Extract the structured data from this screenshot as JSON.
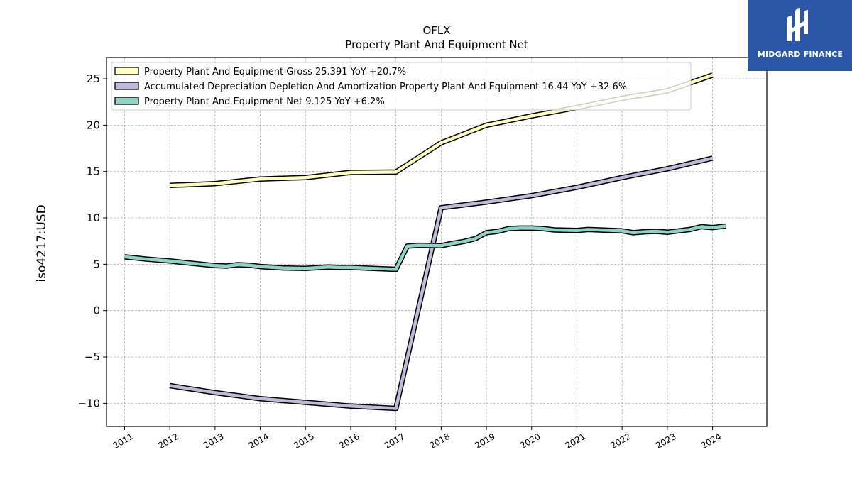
{
  "chart_data": {
    "type": "line",
    "title": "OFLX",
    "subtitle": "Property Plant And Equipment Net",
    "ylabel": "iso4217:USD",
    "xlabel": "",
    "ylim": [
      -12.5,
      27.3
    ],
    "xlim": [
      2010.6,
      2025.2
    ],
    "yticks": [
      -10,
      -5,
      0,
      5,
      10,
      15,
      20,
      25
    ],
    "ytick_labels": [
      "−10",
      "−5",
      "0",
      "5",
      "10",
      "15",
      "20",
      "25"
    ],
    "xticks": [
      "2011",
      "2012",
      "2013",
      "2014",
      "2015",
      "2016",
      "2017",
      "2018",
      "2019",
      "2020",
      "2021",
      "2022",
      "2023",
      "2024"
    ],
    "grid": true,
    "legend_position": "top-left",
    "series": [
      {
        "name": "Property Plant And Equipment Gross  25.391 YoY +20.7%",
        "color": "#ffffc0",
        "points": [
          [
            2012.0,
            13.5
          ],
          [
            2013.0,
            13.7
          ],
          [
            2014.0,
            14.2
          ],
          [
            2015.0,
            14.35
          ],
          [
            2016.0,
            14.9
          ],
          [
            2017.0,
            14.95
          ],
          [
            2018.0,
            18.1
          ],
          [
            2019.0,
            20.0
          ],
          [
            2020.0,
            21.0
          ],
          [
            2021.0,
            21.9
          ],
          [
            2022.0,
            22.9
          ],
          [
            2023.0,
            23.7
          ],
          [
            2024.0,
            25.4
          ]
        ]
      },
      {
        "name": "Accumulated Depreciation Depletion And Amortization Property Plant And Equipment  16.44 YoY +32.6%",
        "color": "#bebada",
        "points": [
          [
            2012.0,
            -8.1
          ],
          [
            2013.0,
            -8.85
          ],
          [
            2014.0,
            -9.5
          ],
          [
            2015.0,
            -9.9
          ],
          [
            2016.0,
            -10.3
          ],
          [
            2017.0,
            -10.55
          ],
          [
            2018.0,
            11.1
          ],
          [
            2019.0,
            11.7
          ],
          [
            2020.0,
            12.4
          ],
          [
            2021.0,
            13.3
          ],
          [
            2022.0,
            14.35
          ],
          [
            2023.0,
            15.3
          ],
          [
            2024.0,
            16.44
          ]
        ]
      },
      {
        "name": "Property Plant And Equipment Net  9.125 YoY +6.2%",
        "color": "#8dd3c7",
        "points": [
          [
            2011.0,
            5.8
          ],
          [
            2011.5,
            5.55
          ],
          [
            2012.0,
            5.35
          ],
          [
            2012.5,
            5.1
          ],
          [
            2013.0,
            4.85
          ],
          [
            2013.25,
            4.8
          ],
          [
            2013.5,
            4.95
          ],
          [
            2013.75,
            4.9
          ],
          [
            2014.0,
            4.75
          ],
          [
            2014.5,
            4.6
          ],
          [
            2015.0,
            4.55
          ],
          [
            2015.5,
            4.7
          ],
          [
            2015.75,
            4.65
          ],
          [
            2016.0,
            4.65
          ],
          [
            2016.5,
            4.55
          ],
          [
            2017.0,
            4.45
          ],
          [
            2017.25,
            6.95
          ],
          [
            2017.5,
            7.05
          ],
          [
            2018.0,
            7.0
          ],
          [
            2018.25,
            7.25
          ],
          [
            2018.5,
            7.45
          ],
          [
            2018.75,
            7.75
          ],
          [
            2019.0,
            8.4
          ],
          [
            2019.25,
            8.55
          ],
          [
            2019.5,
            8.85
          ],
          [
            2019.75,
            8.9
          ],
          [
            2020.0,
            8.9
          ],
          [
            2020.25,
            8.85
          ],
          [
            2020.5,
            8.7
          ],
          [
            2021.0,
            8.65
          ],
          [
            2021.25,
            8.75
          ],
          [
            2022.0,
            8.6
          ],
          [
            2022.25,
            8.4
          ],
          [
            2022.5,
            8.5
          ],
          [
            2022.75,
            8.55
          ],
          [
            2023.0,
            8.45
          ],
          [
            2023.25,
            8.6
          ],
          [
            2023.5,
            8.75
          ],
          [
            2023.75,
            9.05
          ],
          [
            2024.0,
            8.95
          ],
          [
            2024.3,
            9.125
          ]
        ]
      }
    ]
  },
  "logo": {
    "text": "MIDGARD FINANCE",
    "background": "#2b56a8"
  }
}
